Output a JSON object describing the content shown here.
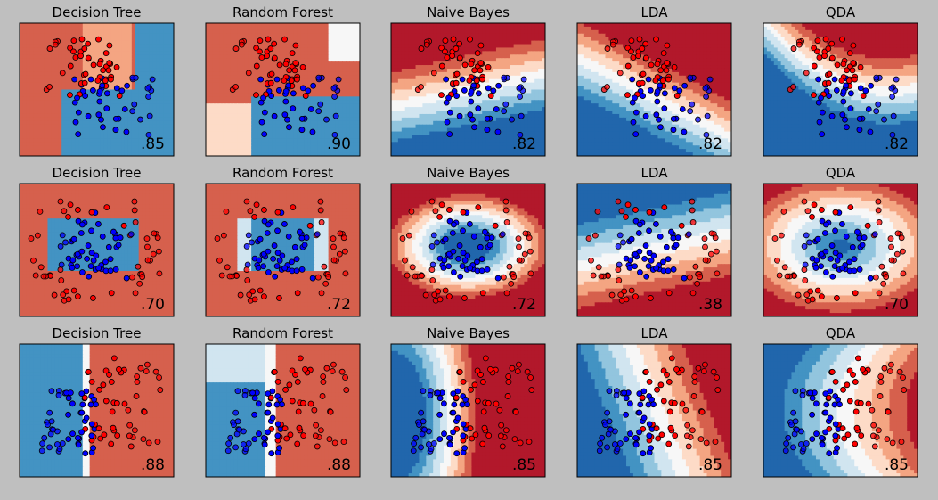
{
  "figure": {
    "background": "#bfbfbf",
    "rows": 3,
    "columns": 5,
    "colormap": [
      "#67001f",
      "#b2182b",
      "#d6604d",
      "#f4a582",
      "#fddbc7",
      "#f7f7f7",
      "#d1e5f0",
      "#92c5de",
      "#4393c3",
      "#2166ac",
      "#053061"
    ],
    "point_colors": {
      "class_a": "#ff0000",
      "class_b": "#0000ff"
    }
  },
  "chart_data": [
    {
      "type": "scatter",
      "title": "Decision Tree",
      "score": ".85",
      "dataset": "moons",
      "row": 0,
      "col": 0
    },
    {
      "type": "scatter",
      "title": "Random Forest",
      "score": ".90",
      "dataset": "moons",
      "row": 0,
      "col": 1
    },
    {
      "type": "scatter",
      "title": "Naive Bayes",
      "score": ".82",
      "dataset": "moons",
      "row": 0,
      "col": 2
    },
    {
      "type": "scatter",
      "title": "LDA",
      "score": ".82",
      "dataset": "moons",
      "row": 0,
      "col": 3
    },
    {
      "type": "scatter",
      "title": "QDA",
      "score": ".82",
      "dataset": "moons",
      "row": 0,
      "col": 4
    },
    {
      "type": "scatter",
      "title": "Decision Tree",
      "score": ".70",
      "dataset": "circles",
      "row": 1,
      "col": 0
    },
    {
      "type": "scatter",
      "title": "Random Forest",
      "score": ".72",
      "dataset": "circles",
      "row": 1,
      "col": 1
    },
    {
      "type": "scatter",
      "title": "Naive Bayes",
      "score": ".72",
      "dataset": "circles",
      "row": 1,
      "col": 2
    },
    {
      "type": "scatter",
      "title": "LDA",
      "score": ".38",
      "dataset": "circles",
      "row": 1,
      "col": 3
    },
    {
      "type": "scatter",
      "title": "QDA",
      "score": ".70",
      "dataset": "circles",
      "row": 1,
      "col": 4
    },
    {
      "type": "scatter",
      "title": "Decision Tree",
      "score": ".88",
      "dataset": "linear",
      "row": 2,
      "col": 0
    },
    {
      "type": "scatter",
      "title": "Random Forest",
      "score": ".88",
      "dataset": "linear",
      "row": 2,
      "col": 1
    },
    {
      "type": "scatter",
      "title": "Naive Bayes",
      "score": ".85",
      "dataset": "linear",
      "row": 2,
      "col": 2
    },
    {
      "type": "scatter",
      "title": "LDA",
      "score": ".85",
      "dataset": "linear",
      "row": 2,
      "col": 3
    },
    {
      "type": "scatter",
      "title": "QDA",
      "score": ".85",
      "dataset": "linear",
      "row": 2,
      "col": 4
    }
  ]
}
